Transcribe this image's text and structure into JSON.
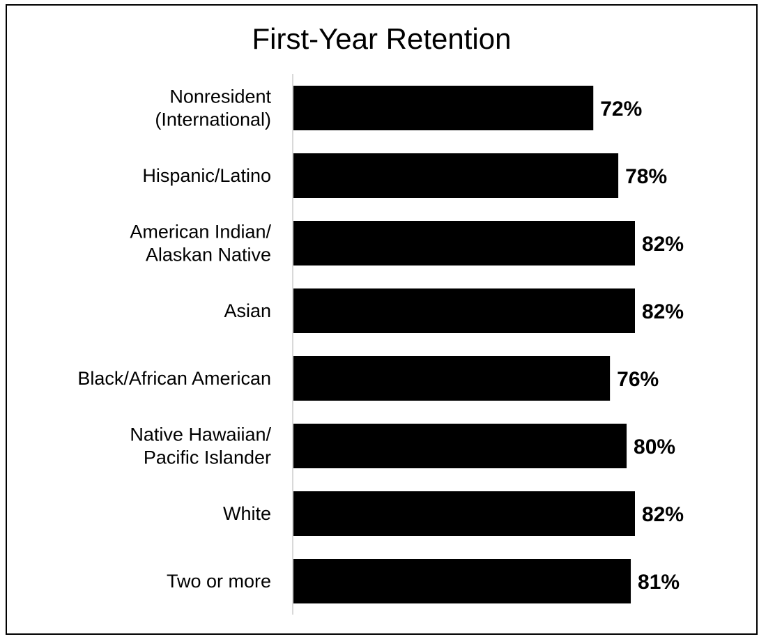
{
  "chart_data": {
    "type": "bar",
    "orientation": "horizontal",
    "title": "First-Year Retention",
    "categories": [
      [
        "Nonresident",
        "(International)"
      ],
      [
        "Hispanic/Latino"
      ],
      [
        "American Indian/",
        "Alaskan Native"
      ],
      [
        "Asian"
      ],
      [
        "Black/African American"
      ],
      [
        "Native Hawaiian/",
        "Pacific Islander"
      ],
      [
        "White"
      ],
      [
        "Two or more"
      ]
    ],
    "values": [
      72,
      78,
      82,
      82,
      76,
      80,
      82,
      81
    ],
    "value_labels": [
      "72%",
      "78%",
      "82%",
      "82%",
      "76%",
      "80%",
      "82%",
      "81%"
    ],
    "unit": "%",
    "xlim": [
      0,
      100
    ],
    "bar_color": "#000000",
    "grid": false,
    "legend": "none"
  }
}
